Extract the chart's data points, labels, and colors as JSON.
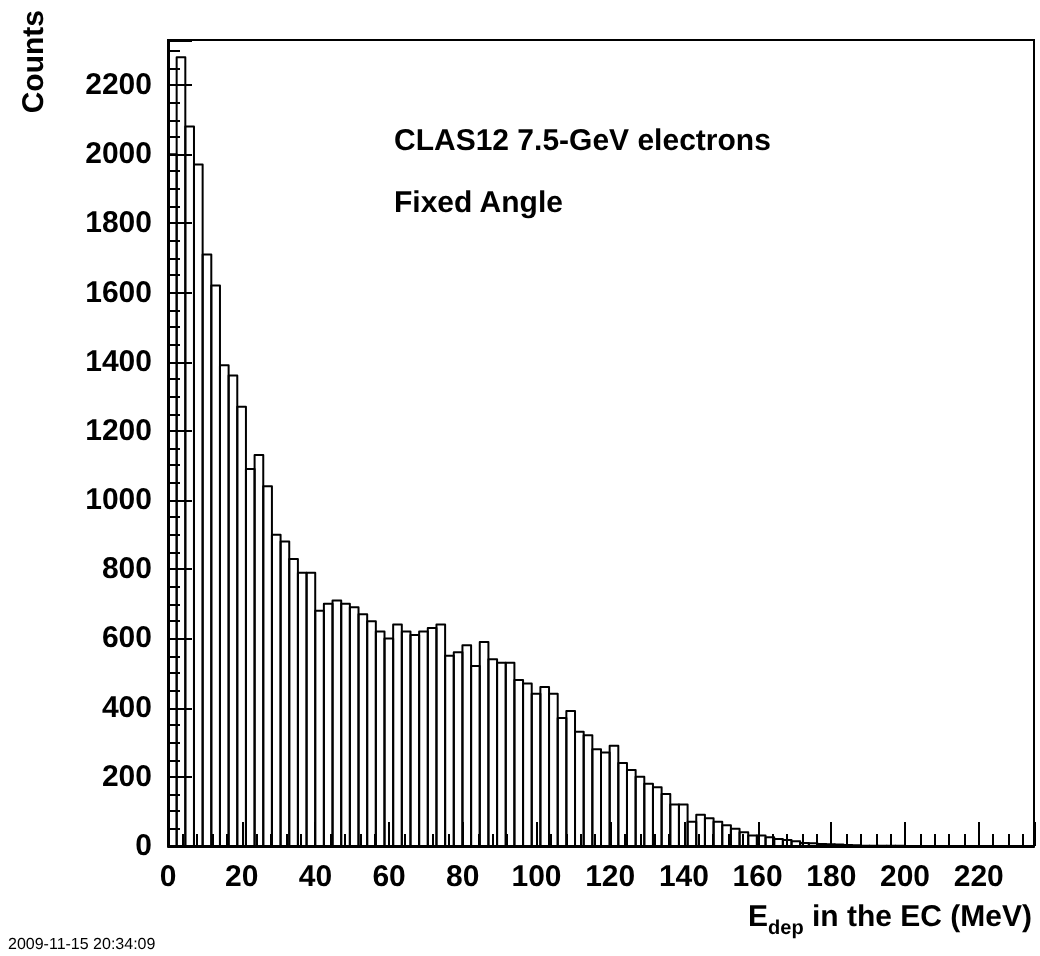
{
  "chart_data": {
    "type": "histogram",
    "title": "CLAS12 7.5-GeV electrons",
    "subtitle": "Fixed Angle",
    "xlabel": "E$_{dep}$ in the EC (MeV)",
    "ylabel": "Counts",
    "annotations": [
      "2009-11-15 20:34:09"
    ],
    "bins": [
      0,
      2.35,
      4.7,
      7.05,
      9.4,
      11.75,
      14.1,
      16.45,
      18.8,
      21.15,
      23.5,
      25.85,
      28.2,
      30.55,
      32.9,
      35.25,
      37.6,
      39.95,
      42.3,
      44.65,
      47,
      49.35,
      51.7,
      54.05,
      56.4,
      58.75,
      61.1,
      63.45,
      65.8,
      68.15,
      70.5,
      72.85,
      75.2,
      77.55,
      79.9,
      82.25,
      84.6,
      86.95,
      89.3,
      91.65,
      94,
      96.35,
      98.7,
      101.05,
      103.4,
      105.75,
      108.1,
      110.45,
      112.8,
      115.15,
      117.5,
      119.85,
      122.2,
      124.55,
      126.9,
      129.25,
      131.6,
      133.95,
      136.3,
      138.65,
      141,
      143.35,
      145.7,
      148.05,
      150.4,
      152.75,
      155.1,
      157.45,
      159.8,
      162.15,
      164.5,
      166.85,
      169.2,
      171.55,
      173.9,
      176.25,
      178.6,
      180.95,
      183.3,
      185.65,
      188,
      190.35,
      192.7,
      195.05,
      197.4,
      199.75,
      202.1,
      204.45,
      206.8,
      209.15,
      211.5,
      213.85,
      216.2,
      218.55,
      220.9,
      223.25,
      225.6,
      227.95,
      230.3,
      232.65,
      235
    ],
    "values": [
      2000,
      2280,
      2080,
      1970,
      1710,
      1620,
      1390,
      1360,
      1270,
      1090,
      1130,
      1040,
      900,
      880,
      830,
      790,
      790,
      680,
      700,
      710,
      700,
      690,
      670,
      650,
      620,
      600,
      640,
      620,
      610,
      620,
      630,
      640,
      550,
      560,
      580,
      520,
      590,
      540,
      530,
      530,
      480,
      470,
      440,
      460,
      440,
      370,
      390,
      330,
      320,
      280,
      270,
      290,
      240,
      220,
      200,
      180,
      170,
      150,
      120,
      120,
      70,
      90,
      80,
      70,
      60,
      50,
      40,
      30,
      30,
      25,
      20,
      17,
      14,
      9,
      8,
      6,
      5,
      4,
      3,
      2,
      1,
      1,
      1,
      1,
      1,
      0,
      0,
      0,
      0,
      0,
      0,
      0,
      0,
      0,
      0,
      0,
      0,
      0,
      0,
      0
    ],
    "color": "#000000",
    "xlim": [
      0,
      235
    ],
    "xticks": [
      0,
      20,
      40,
      60,
      80,
      100,
      120,
      140,
      160,
      180,
      200,
      220
    ],
    "ylim": [
      0,
      2330
    ],
    "yticks": [
      0,
      200,
      400,
      600,
      800,
      1000,
      1200,
      1400,
      1600,
      1800,
      2000,
      2200
    ],
    "grid": false,
    "legend": false
  }
}
